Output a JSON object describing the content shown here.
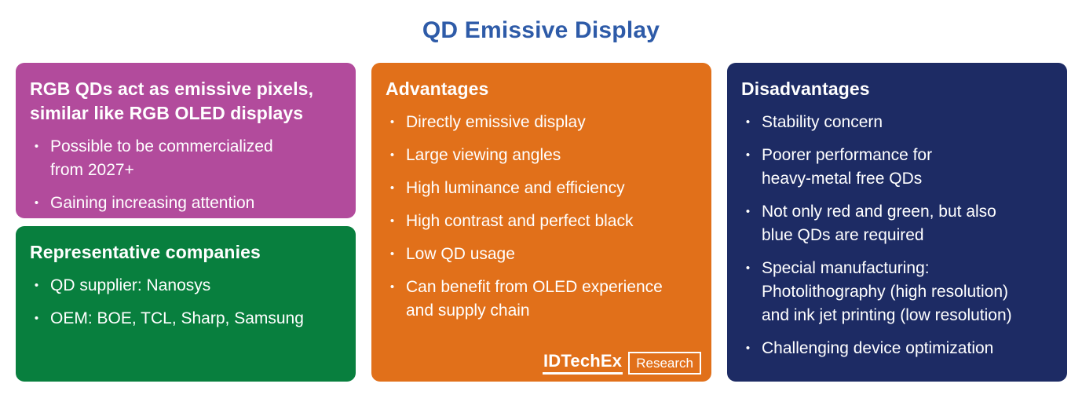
{
  "title": "QD Emissive Display",
  "colors": {
    "title": "#2e5ba8",
    "purple": "#b24b9c",
    "green": "#087f3e",
    "orange": "#e1701a",
    "navy": "#1d2b64"
  },
  "panels": {
    "overview": {
      "heading": "RGB QDs act as emissive pixels,\nsimilar like RGB OLED displays",
      "bullets": [
        "Possible to be commercialized\nfrom 2027+",
        "Gaining increasing attention"
      ]
    },
    "companies": {
      "heading": "Representative companies",
      "bullets": [
        "QD supplier: Nanosys",
        "OEM: BOE, TCL, Sharp, Samsung"
      ]
    },
    "advantages": {
      "heading": "Advantages",
      "bullets": [
        "Directly emissive display",
        "Large viewing angles",
        "High luminance and efficiency",
        "High contrast and perfect black",
        "Low QD usage",
        "Can benefit from OLED experience\nand supply chain"
      ]
    },
    "disadvantages": {
      "heading": "Disadvantages",
      "bullets": [
        "Stability concern",
        "Poorer performance for\nheavy-metal free QDs",
        "Not only red and green, but also\nblue QDs are required",
        "Special manufacturing:\nPhotolithography (high resolution)\nand ink jet printing (low resolution)",
        "Challenging device optimization"
      ]
    }
  },
  "logo": {
    "brand": "IDTechEx",
    "suffix": "Research"
  },
  "bullet_glyph": "•"
}
